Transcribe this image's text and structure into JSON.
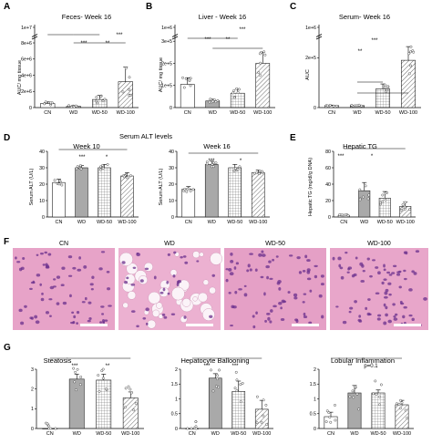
{
  "colors": {
    "wd_fill": "#a9a9a9",
    "bar_edge": "#222222",
    "dot_fill": "#ffffff",
    "he_bg": "#e7a3c8",
    "he_nuclei": "#6a2f8c"
  },
  "panels": {
    "A": {
      "letter": "A",
      "title": "Feces- Week 16",
      "ylabel": "AUC/ mg tissue",
      "ticks": [
        "1e+7",
        "8e+6",
        "6e+6",
        "4e+6",
        "2e+6",
        "0"
      ],
      "categories": [
        "CN",
        "WD",
        "WD-50",
        "WD-100"
      ],
      "sig": [
        "***",
        "**",
        "***"
      ]
    },
    "B": {
      "letter": "B",
      "title": "Liver - Week 16",
      "ylabel": "AUC/ mg tissue",
      "ticks": [
        "1e+6",
        "3e+5",
        "2e+5",
        "1e+5",
        "0"
      ],
      "categories": [
        "CN",
        "WD",
        "WD-50",
        "WD-100"
      ],
      "sig": [
        "***",
        "**",
        "***"
      ]
    },
    "C": {
      "letter": "C",
      "title": "Serum- Week 16",
      "ylabel": "AUC",
      "ticks": [
        "1e+6",
        "2e+5",
        "0"
      ],
      "categories": [
        "CN",
        "WD",
        "WD-50",
        "WD-100"
      ],
      "sig": [
        "**",
        "***"
      ]
    },
    "D": {
      "letter": "D",
      "title": "Serum ALT levels",
      "subtitle1": "Week 10",
      "subtitle2": "Week 16",
      "ylabel": "Serum ALT (U/L)",
      "ticks": [
        "40",
        "30",
        "20",
        "10",
        "0"
      ],
      "categories": [
        "CN",
        "WD",
        "WD-50",
        "WD-100"
      ],
      "sig1": [
        "***",
        "*"
      ],
      "sig2": [
        "***",
        "*"
      ]
    },
    "E": {
      "letter": "E",
      "title": "Hepatic TG",
      "ylabel": "Hepatic TG (mg/dl/g DNA)",
      "ticks": [
        "80",
        "60",
        "40",
        "20",
        "0"
      ],
      "categories": [
        "CN",
        "WD",
        "WD-50",
        "WD-100"
      ],
      "sig": [
        "***",
        "*"
      ]
    },
    "F": {
      "letter": "F",
      "labels": [
        "CN",
        "WD",
        "WD-50",
        "WD-100"
      ]
    },
    "G": {
      "letter": "G",
      "titles": [
        "Steatosis",
        "Hepatocyte Ballooning",
        "Lobular Inflammation"
      ],
      "ticks1": [
        "3",
        "2",
        "1",
        "0"
      ],
      "ticks2": [
        "2",
        "1.5",
        "1",
        "0.5",
        "0"
      ],
      "ticks3": [
        "2",
        "1.5",
        "1",
        "0.5",
        "0"
      ],
      "categories": [
        "CN",
        "WD",
        "WD-50",
        "WD-100"
      ],
      "sig1": [
        "***",
        "**"
      ],
      "sig2": [
        "***",
        "***"
      ],
      "sig3": [
        "**",
        "p=0.1"
      ]
    }
  },
  "chart_data": [
    {
      "type": "bar",
      "title": "Feces- Week 16",
      "ylabel": "AUC/ mg tissue",
      "categories": [
        "CN",
        "WD",
        "WD-50",
        "WD-100"
      ],
      "values": [
        500000,
        150000,
        1000000,
        3200000
      ],
      "errors": [
        200000,
        100000,
        500000,
        1800000
      ],
      "ylim": [
        0,
        10000000
      ],
      "broken_axis": true
    },
    {
      "type": "bar",
      "title": "Liver - Week 16",
      "ylabel": "AUC/ mg tissue",
      "categories": [
        "CN",
        "WD",
        "WD-50",
        "WD-100"
      ],
      "values": [
        105000,
        30000,
        65000,
        200000
      ],
      "errors": [
        30000,
        8000,
        20000,
        50000
      ],
      "ylim": [
        0,
        1000000
      ],
      "broken_axis": true
    },
    {
      "type": "bar",
      "title": "Serum- Week 16",
      "ylabel": "AUC",
      "categories": [
        "CN",
        "WD",
        "WD-50",
        "WD-100"
      ],
      "values": [
        8000,
        8000,
        75000,
        190000
      ],
      "errors": [
        2000,
        2000,
        20000,
        55000
      ],
      "ylim": [
        0,
        1000000
      ],
      "broken_axis": true
    },
    {
      "type": "bar",
      "title": "Week 10",
      "ylabel": "Serum ALT (U/L)",
      "categories": [
        "CN",
        "WD",
        "WD-50",
        "WD-100"
      ],
      "values": [
        21,
        30,
        30,
        25
      ],
      "errors": [
        2,
        1.5,
        2,
        2
      ],
      "ylim": [
        0,
        40
      ]
    },
    {
      "type": "bar",
      "title": "Week 16",
      "ylabel": "Serum ALT (U/L)",
      "categories": [
        "CN",
        "WD",
        "WD-50",
        "WD-100"
      ],
      "values": [
        17,
        32,
        30,
        27
      ],
      "errors": [
        1.5,
        2,
        2,
        1.5
      ],
      "ylim": [
        0,
        40
      ]
    },
    {
      "type": "bar",
      "title": "Hepatic TG",
      "ylabel": "Hepatic TG (mg/dl/g DNA)",
      "categories": [
        "CN",
        "WD",
        "WD-50",
        "WD-100"
      ],
      "values": [
        2,
        32,
        23,
        13
      ],
      "errors": [
        1,
        10,
        8,
        5
      ],
      "ylim": [
        0,
        80
      ]
    },
    {
      "type": "bar",
      "title": "Steatosis",
      "categories": [
        "CN",
        "WD",
        "WD-50",
        "WD-100"
      ],
      "values": [
        0,
        2.5,
        2.45,
        1.55
      ],
      "errors": [
        0,
        0.25,
        0.3,
        0.3
      ],
      "ylim": [
        0,
        3
      ]
    },
    {
      "type": "bar",
      "title": "Hepatocyte Ballooning",
      "categories": [
        "CN",
        "WD",
        "WD-50",
        "WD-100"
      ],
      "values": [
        0,
        1.7,
        1.25,
        0.65
      ],
      "errors": [
        0,
        0.15,
        0.35,
        0.3
      ],
      "ylim": [
        0,
        2
      ]
    },
    {
      "type": "bar",
      "title": "Lobular Inflammation",
      "categories": [
        "CN",
        "WD",
        "WD-50",
        "WD-100"
      ],
      "values": [
        0.4,
        1.2,
        1.2,
        0.8
      ],
      "errors": [
        0.15,
        0.25,
        0.1,
        0.15
      ],
      "ylim": [
        0,
        2
      ]
    }
  ]
}
